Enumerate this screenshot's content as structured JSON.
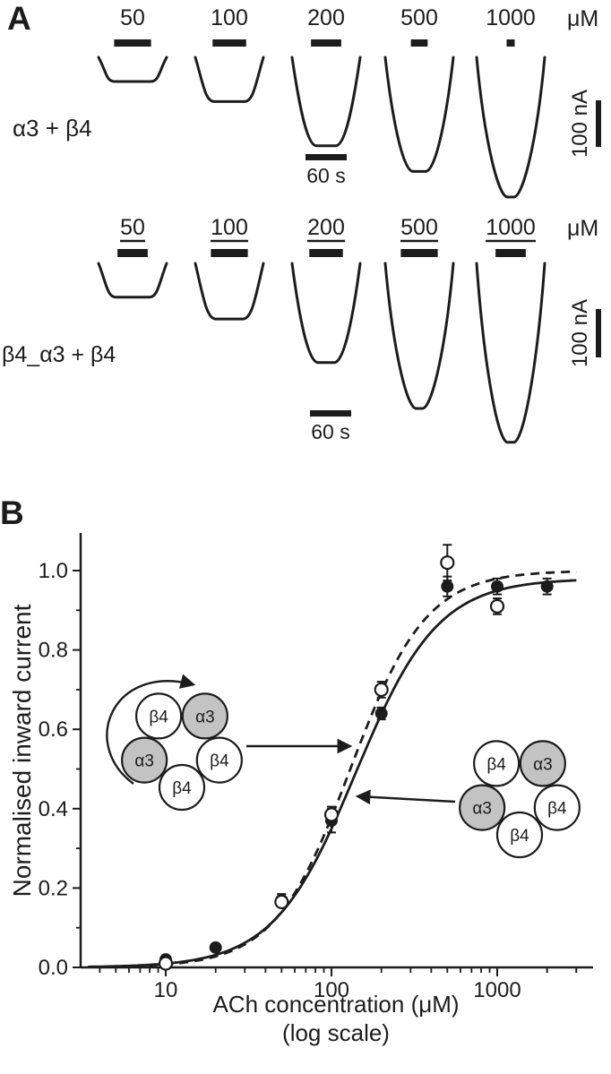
{
  "figure": {
    "background": "#ffffff",
    "ink": "#1c1c1c",
    "gray_fill": "#c3c3c3"
  },
  "panel_a": {
    "label": "A",
    "unit": "μM",
    "concentrations": [
      "50",
      "100",
      "200",
      "500",
      "1000"
    ],
    "current_scale_label": "100 nA",
    "time_scale_label": "60 s",
    "rows": [
      {
        "label": "α3 + β4",
        "labels_underlined": false
      },
      {
        "label": "β4_α3 + β4",
        "labels_underlined": true
      }
    ]
  },
  "panel_b": {
    "label": "B",
    "ylabel": "Normalised inward current",
    "xlabel_line1": "ACh concentration (μM)",
    "xlabel_line2": "(log scale)",
    "x_ticks": [
      "10",
      "100",
      "1000"
    ],
    "y_ticks": [
      "0.0",
      "0.2",
      "0.4",
      "0.6",
      "0.8",
      "1.0"
    ],
    "diagrams": [
      {
        "link_arrow": true,
        "subunits": [
          {
            "label": "β4",
            "gray": false
          },
          {
            "label": "α3",
            "gray": true
          },
          {
            "label": "α3",
            "gray": true
          },
          {
            "label": "β4",
            "gray": false
          },
          {
            "label": "β4",
            "gray": false
          }
        ]
      },
      {
        "link_arrow": false,
        "subunits": [
          {
            "label": "β4",
            "gray": false
          },
          {
            "label": "α3",
            "gray": true
          },
          {
            "label": "α3",
            "gray": true
          },
          {
            "label": "β4",
            "gray": false
          },
          {
            "label": "β4",
            "gray": false
          }
        ]
      }
    ]
  },
  "chart_data": [
    {
      "type": "line",
      "title": "ACh-evoked inward current traces",
      "groups": [
        {
          "receptor": "α3 + β4",
          "concentrations_uM": [
            50,
            100,
            200,
            500,
            1000
          ],
          "peak_current_nA": [
            52,
            95,
            190,
            245,
            300
          ],
          "application_s": [
            55,
            50,
            45,
            25,
            12
          ],
          "current_scale_nA": 100,
          "time_scale_s": 60
        },
        {
          "receptor": "β4_α3 + β4",
          "concentrations_uM": [
            50,
            100,
            200,
            500,
            1000
          ],
          "peak_current_nA": [
            70,
            115,
            205,
            300,
            370
          ],
          "application_s": [
            45,
            55,
            50,
            55,
            45
          ],
          "current_scale_nA": 100,
          "time_scale_s": 60
        }
      ]
    },
    {
      "type": "scatter",
      "xlabel": "ACh concentration (μM)",
      "x_scale": "log",
      "ylabel": "Normalised inward current",
      "xlim": [
        3,
        3000
      ],
      "ylim": [
        0,
        1.05
      ],
      "x_tick_values": [
        10,
        100,
        1000
      ],
      "series": [
        {
          "name": "α3 + β4",
          "marker": "filled-circle",
          "line": "solid",
          "x": [
            10,
            20,
            50,
            100,
            200,
            500,
            1000,
            2000
          ],
          "y": [
            0.02,
            0.05,
            0.17,
            0.37,
            0.64,
            0.96,
            0.96,
            0.96
          ],
          "yerr": [
            0.008,
            0.01,
            0.015,
            0.03,
            0.015,
            0.025,
            0.02,
            0.02
          ],
          "fit": {
            "ec50": 140,
            "hill": 1.75,
            "ymax": 0.98
          }
        },
        {
          "name": "β4_α3 + β4",
          "marker": "open-circle",
          "line": "dashed",
          "x": [
            10,
            50,
            100,
            200,
            500,
            1000
          ],
          "y": [
            0.01,
            0.165,
            0.385,
            0.7,
            1.02,
            0.91
          ],
          "yerr": [
            0.006,
            0.01,
            0.02,
            0.02,
            0.045,
            0.02
          ],
          "fit": {
            "ec50": 130,
            "hill": 1.9,
            "ymax": 1.0
          }
        }
      ]
    }
  ]
}
